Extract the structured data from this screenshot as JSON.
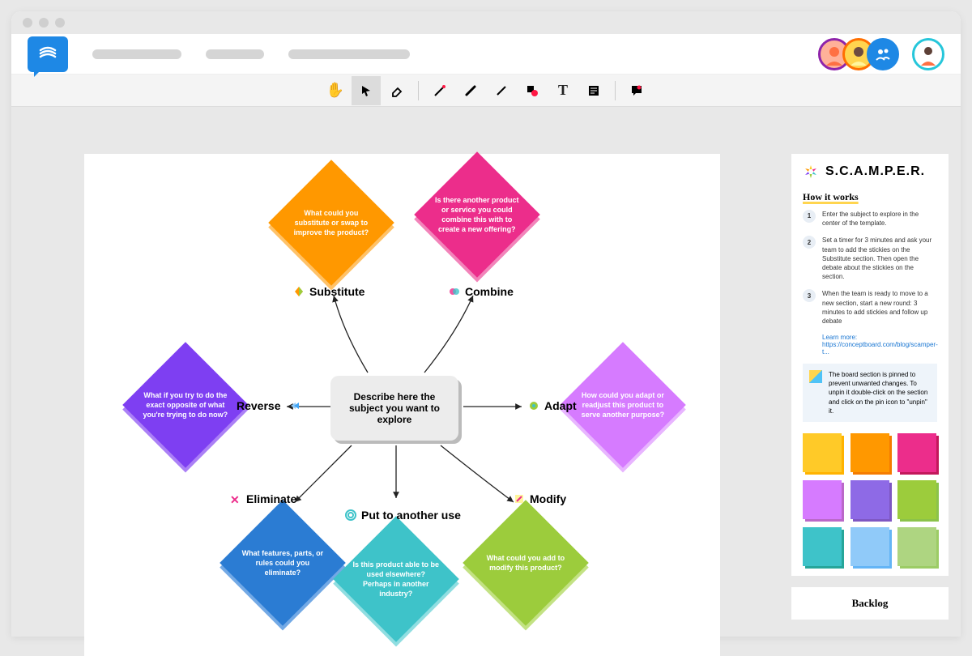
{
  "center_text": "Describe here the subject you want to explore",
  "nodes": {
    "substitute": {
      "label": "Substitute",
      "prompt": "What could you substitute or swap to improve the product?",
      "color": "#ff9800",
      "shadow": "#ffb74d"
    },
    "combine": {
      "label": "Combine",
      "prompt": "Is there another product or service you could combine this with to create a new offering?",
      "color": "#ec2d8b",
      "shadow": "#f06eae"
    },
    "adapt": {
      "label": "Adapt",
      "prompt": "How could you adapt or readjust this product to serve another purpose?",
      "color": "#d67bff",
      "shadow": "#e4a8ff"
    },
    "modify": {
      "label": "Modify",
      "prompt": "What could you add to modify this product?",
      "color": "#9ccc3c",
      "shadow": "#b8dd6e"
    },
    "put": {
      "label": "Put to another use",
      "prompt": "Is this product able to be used elsewhere? Perhaps in another industry?",
      "color": "#3ec3c9",
      "shadow": "#7dd8dc"
    },
    "eliminate": {
      "label": "Eliminate",
      "prompt": "What features, parts, or rules could you eliminate?",
      "color": "#2b7cd3",
      "shadow": "#5a9ae0"
    },
    "reverse": {
      "label": "Reverse",
      "prompt": "What if you try to do the exact opposite of what you're trying to do now?",
      "color": "#7e3ff2",
      "shadow": "#9c6af5"
    }
  },
  "arrows": {
    "stroke": "#222",
    "width": 1.3
  },
  "sidebar": {
    "title": "S.C.A.M.P.E.R.",
    "how_title": "How it works",
    "steps": [
      "Enter the subject to explore in the center of the template.",
      "Set a timer for 3 minutes and ask your team to add the stickies on the Substitute section. Then open the debate about the stickies on the section.",
      "When the team is ready to move to a new section, start a new round: 3 minutes to add stickies and follow up debate"
    ],
    "learn_more": "Learn more:",
    "learn_link": "https://conceptboard.com/blog/scamper-t...",
    "tip": "The board section is pinned to prevent unwanted changes. To unpin it double-click on the section and click on the pin icon to \"unpin\" it.",
    "backlog": "Backlog"
  },
  "palette": [
    {
      "c": "#ffca28",
      "sh": "#ffb300"
    },
    {
      "c": "#ff9800",
      "sh": "#f57c00"
    },
    {
      "c": "#ec2d8b",
      "sh": "#c2185b"
    },
    {
      "c": "#d67bff",
      "sh": "#ba68c8"
    },
    {
      "c": "#8e6ae6",
      "sh": "#7e57c2"
    },
    {
      "c": "#9ccc3c",
      "sh": "#8bc34a"
    },
    {
      "c": "#3ec3c9",
      "sh": "#26a69a"
    },
    {
      "c": "#90caf9",
      "sh": "#64b5f6"
    },
    {
      "c": "#aed581",
      "sh": "#9ccc65"
    }
  ],
  "toolbar_icons": [
    "hand",
    "pointer",
    "eraser",
    "pen",
    "brush",
    "line",
    "shape",
    "text",
    "note",
    "comment"
  ]
}
